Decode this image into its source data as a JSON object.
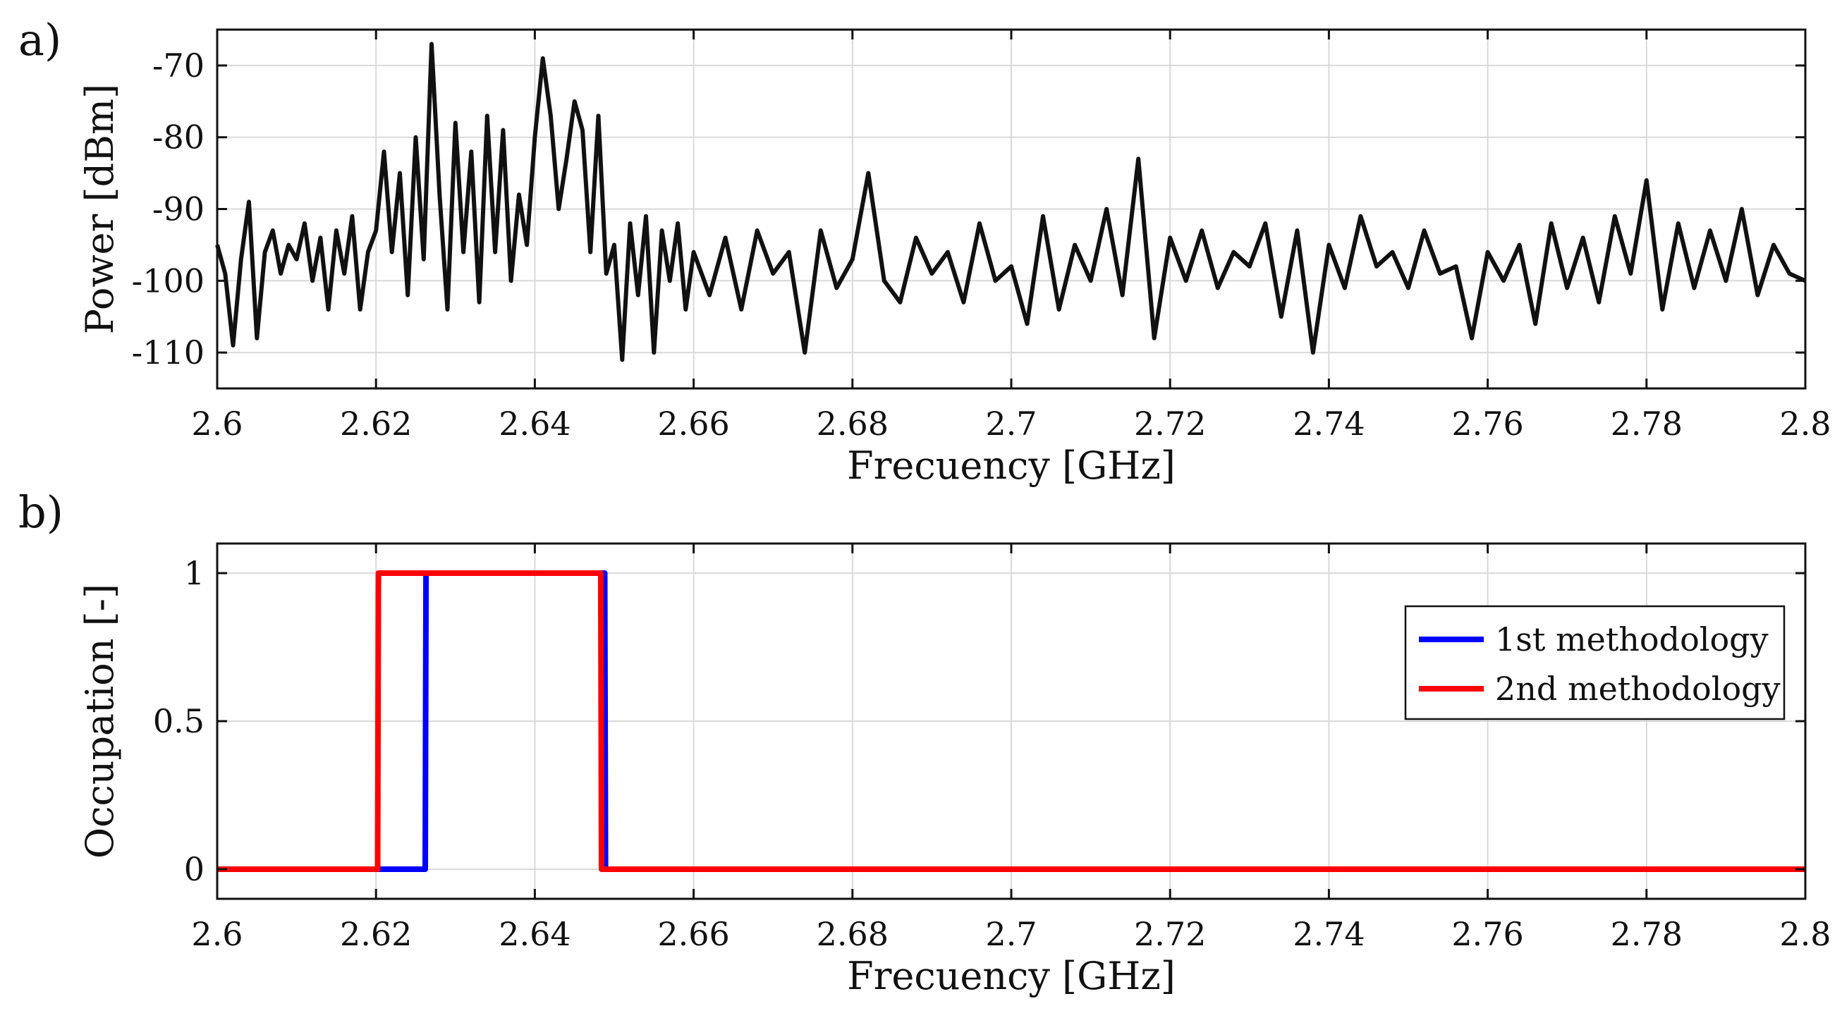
{
  "panel_labels": [
    "a)",
    "b)"
  ],
  "colors": {
    "power": "#111111",
    "first": "#0000ff",
    "second": "#ff0000",
    "grid": "#d9d9d9",
    "axis": "#111111"
  },
  "chart_data": [
    {
      "type": "line",
      "panel": "a)",
      "title": "",
      "xlabel": "Frecuency [GHz]",
      "ylabel": "Power [dBm]",
      "xlim": [
        2.6,
        2.8
      ],
      "ylim": [
        -115,
        -65
      ],
      "xticks": [
        2.6,
        2.62,
        2.64,
        2.66,
        2.68,
        2.7,
        2.72,
        2.74,
        2.76,
        2.78,
        2.8
      ],
      "xtick_labels": [
        "2.6",
        "2.62",
        "2.64",
        "2.66",
        "2.68",
        "2.7",
        "2.72",
        "2.74",
        "2.76",
        "2.78",
        "2.8"
      ],
      "yticks": [
        -70,
        -80,
        -90,
        -100,
        -110
      ],
      "ytick_labels": [
        "-70",
        "-80",
        "-90",
        "-100",
        "-110"
      ],
      "grid": true,
      "series": [
        {
          "name": "Power",
          "x": [
            2.6,
            2.601,
            2.602,
            2.603,
            2.604,
            2.605,
            2.606,
            2.607,
            2.608,
            2.609,
            2.61,
            2.611,
            2.612,
            2.613,
            2.614,
            2.615,
            2.616,
            2.617,
            2.618,
            2.619,
            2.62,
            2.621,
            2.622,
            2.623,
            2.624,
            2.625,
            2.626,
            2.627,
            2.628,
            2.629,
            2.63,
            2.631,
            2.632,
            2.633,
            2.634,
            2.635,
            2.636,
            2.637,
            2.638,
            2.639,
            2.64,
            2.641,
            2.642,
            2.643,
            2.644,
            2.645,
            2.646,
            2.647,
            2.648,
            2.649,
            2.65,
            2.651,
            2.652,
            2.653,
            2.654,
            2.655,
            2.656,
            2.657,
            2.658,
            2.659,
            2.66,
            2.662,
            2.664,
            2.666,
            2.668,
            2.67,
            2.672,
            2.674,
            2.676,
            2.678,
            2.68,
            2.682,
            2.684,
            2.686,
            2.688,
            2.69,
            2.692,
            2.694,
            2.696,
            2.698,
            2.7,
            2.702,
            2.704,
            2.706,
            2.708,
            2.71,
            2.712,
            2.714,
            2.716,
            2.718,
            2.72,
            2.722,
            2.724,
            2.726,
            2.728,
            2.73,
            2.732,
            2.734,
            2.736,
            2.738,
            2.74,
            2.742,
            2.744,
            2.746,
            2.748,
            2.75,
            2.752,
            2.754,
            2.756,
            2.758,
            2.76,
            2.762,
            2.764,
            2.766,
            2.768,
            2.77,
            2.772,
            2.774,
            2.776,
            2.778,
            2.78,
            2.782,
            2.784,
            2.786,
            2.788,
            2.79,
            2.792,
            2.794,
            2.796,
            2.798,
            2.8
          ],
          "y": [
            -95,
            -99,
            -109,
            -97,
            -89,
            -108,
            -96,
            -93,
            -99,
            -95,
            -97,
            -92,
            -100,
            -94,
            -104,
            -93,
            -99,
            -91,
            -104,
            -96,
            -93,
            -82,
            -96,
            -85,
            -102,
            -80,
            -97,
            -67,
            -88,
            -104,
            -78,
            -96,
            -82,
            -103,
            -77,
            -96,
            -79,
            -100,
            -88,
            -95,
            -80,
            -69,
            -77,
            -90,
            -83,
            -75,
            -79,
            -96,
            -77,
            -99,
            -95,
            -111,
            -92,
            -102,
            -91,
            -110,
            -93,
            -100,
            -92,
            -104,
            -96,
            -102,
            -94,
            -104,
            -93,
            -99,
            -96,
            -110,
            -93,
            -101,
            -97,
            -85,
            -100,
            -103,
            -94,
            -99,
            -96,
            -103,
            -92,
            -100,
            -98,
            -106,
            -91,
            -104,
            -95,
            -100,
            -90,
            -102,
            -83,
            -108,
            -94,
            -100,
            -93,
            -101,
            -96,
            -98,
            -92,
            -105,
            -93,
            -110,
            -95,
            -101,
            -91,
            -98,
            -96,
            -101,
            -93,
            -99,
            -98,
            -108,
            -96,
            -100,
            -95,
            -106,
            -92,
            -101,
            -94,
            -103,
            -91,
            -99,
            -86,
            -104,
            -92,
            -101,
            -93,
            -100,
            -90,
            -102,
            -95,
            -99,
            -100
          ]
        }
      ]
    },
    {
      "type": "line",
      "panel": "b)",
      "title": "",
      "xlabel": "Frecuency [GHz]",
      "ylabel": "Occupation [-]",
      "xlim": [
        2.6,
        2.8
      ],
      "ylim": [
        -0.1,
        1.1
      ],
      "xticks": [
        2.6,
        2.62,
        2.64,
        2.66,
        2.68,
        2.7,
        2.72,
        2.74,
        2.76,
        2.78,
        2.8
      ],
      "xtick_labels": [
        "2.6",
        "2.62",
        "2.64",
        "2.66",
        "2.68",
        "2.7",
        "2.72",
        "2.74",
        "2.76",
        "2.78",
        "2.8"
      ],
      "yticks": [
        1,
        0.5,
        0
      ],
      "ytick_labels": [
        "1",
        "0.5",
        "0"
      ],
      "grid": true,
      "legend_position": "top-right",
      "series": [
        {
          "name": "1st methodology",
          "x": [
            2.6,
            2.6262,
            2.6263,
            2.6488,
            2.6489,
            2.8
          ],
          "y": [
            0,
            0,
            1,
            1,
            0,
            0
          ]
        },
        {
          "name": "2nd methodology",
          "x": [
            2.6,
            2.6202,
            2.6203,
            2.6483,
            2.6484,
            2.8
          ],
          "y": [
            0,
            0,
            1,
            1,
            0,
            0
          ]
        }
      ]
    }
  ]
}
